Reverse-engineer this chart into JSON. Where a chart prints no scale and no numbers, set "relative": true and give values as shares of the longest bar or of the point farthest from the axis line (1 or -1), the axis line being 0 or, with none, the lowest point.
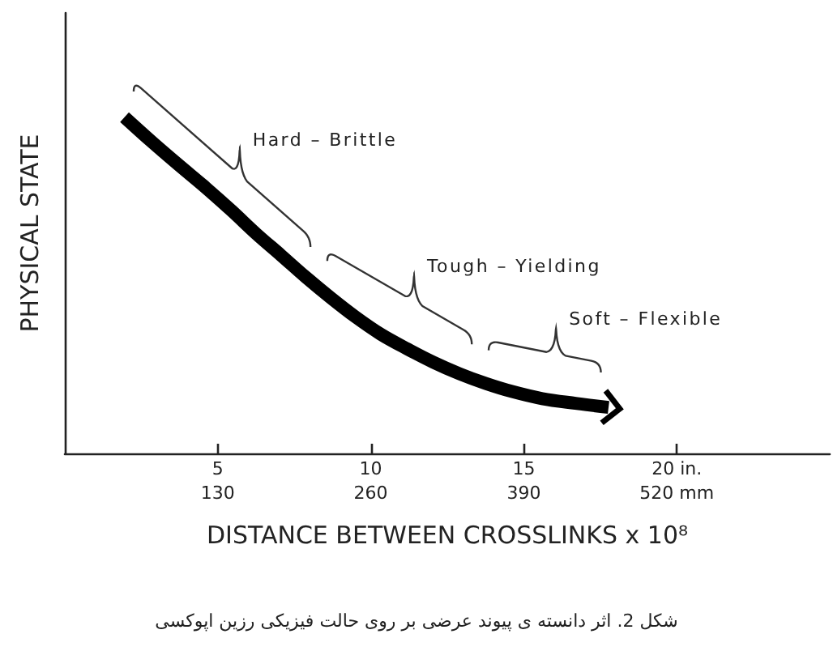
{
  "chart_data": {
    "type": "line",
    "title": "شکل 2. اثر دانسته ی پیوند عرضی بر روی حالت فیزیکی رزین اپوکسی",
    "xlabel": "DISTANCE BETWEEN CROSSLINKS x 10⁸",
    "ylabel": "PHYSICAL STATE",
    "relative": true,
    "x": [
      1.95,
      2.84,
      3.72,
      4.61,
      5.45,
      6.26,
      7.07,
      7.88,
      8.69,
      9.5,
      10.32,
      11.19,
      12.05,
      12.9,
      13.76,
      14.62,
      15.6,
      16.69,
      17.77
    ],
    "series": [
      {
        "color": "#000000",
        "values": [
          1.0,
          0.927,
          0.858,
          0.79,
          0.722,
          0.653,
          0.589,
          0.524,
          0.463,
          0.406,
          0.355,
          0.311,
          0.271,
          0.237,
          0.208,
          0.184,
          0.163,
          0.149,
          0.137
        ]
      }
    ],
    "xlim": [
      0,
      25
    ],
    "xticks": [
      5,
      10,
      15,
      {
        "value": 20,
        "label": "20 in."
      }
    ],
    "x2lim": [
      0,
      650
    ],
    "x2ticks": [
      130,
      260,
      390,
      {
        "value": 520,
        "label": "520 mm"
      }
    ],
    "annotations": [
      "Hard – Brittle",
      "Tough – Yielding",
      "Soft – Flexible"
    ],
    "marker": "none",
    "line_style": "solid"
  }
}
